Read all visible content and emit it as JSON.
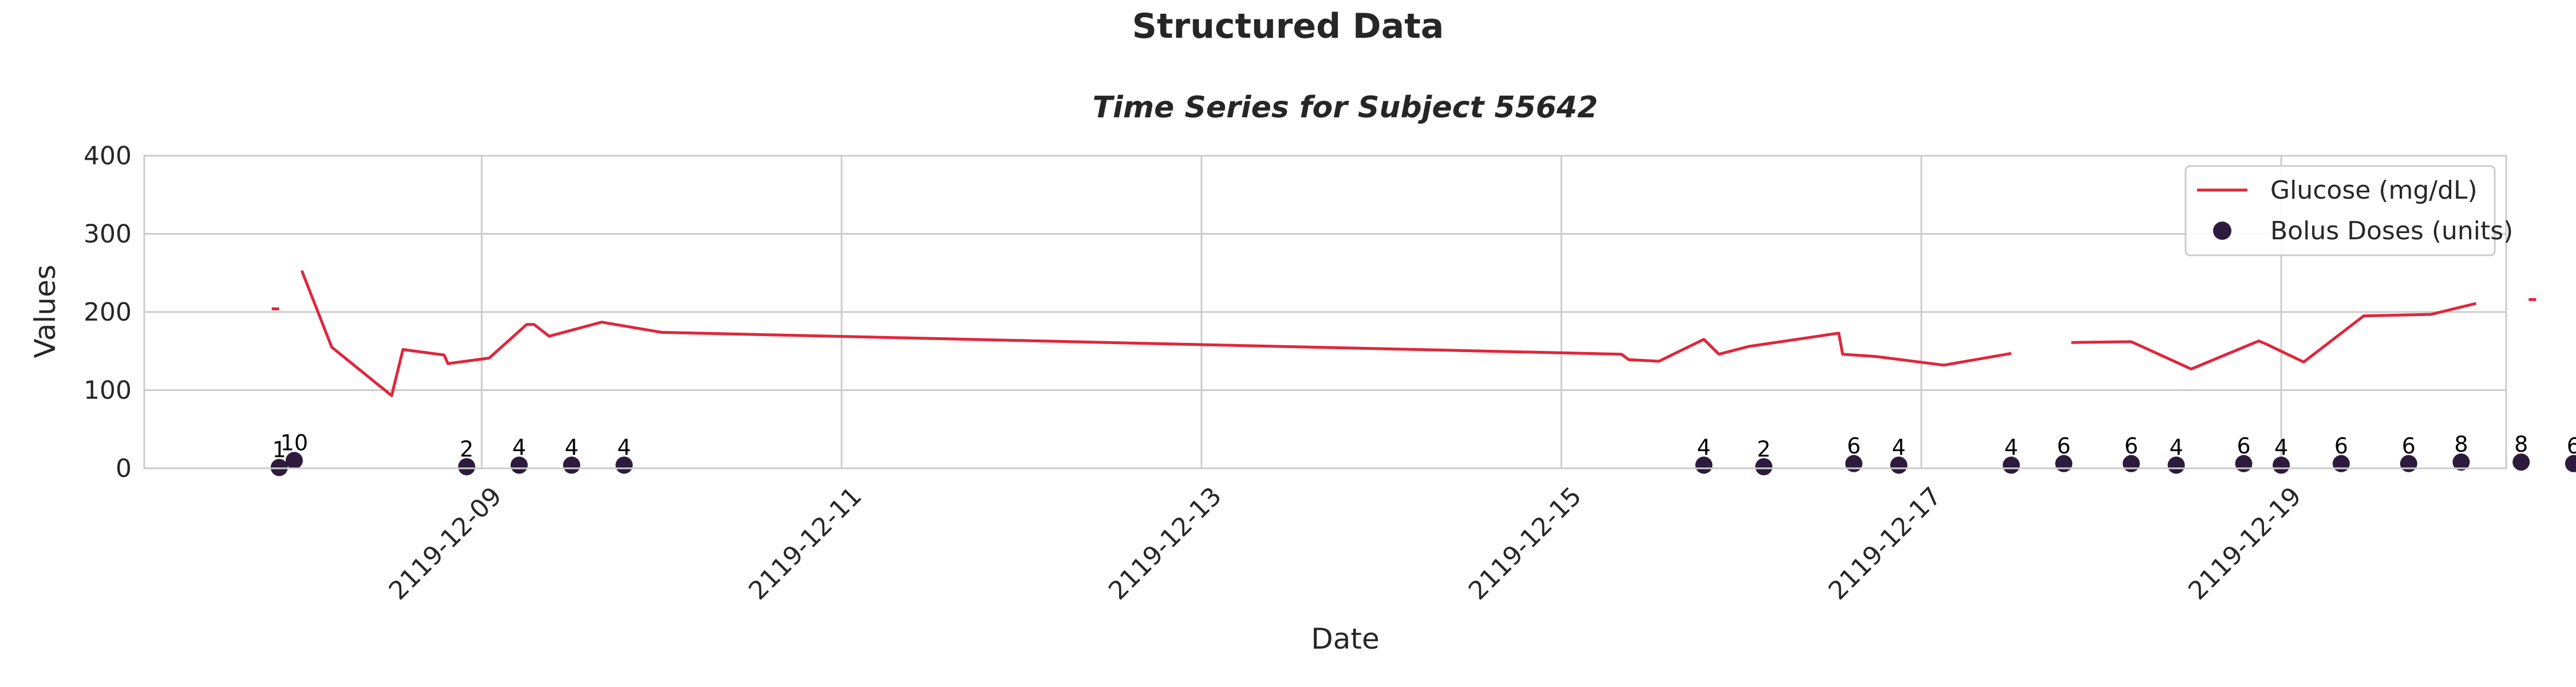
{
  "figure": {
    "suptitle": "Structured Data"
  },
  "chart_data": {
    "type": "line",
    "title": "Time Series for Subject 55642",
    "xlabel": "Date",
    "ylabel": "Values",
    "ylim": [
      0,
      400
    ],
    "xlim": [
      "2119-12-07 03:00",
      "2119-12-20 06:00"
    ],
    "y_ticks": [
      "0",
      "100",
      "200",
      "300",
      "400"
    ],
    "x_ticks": [
      "2119-12-09",
      "2119-12-11",
      "2119-12-13",
      "2119-12-15",
      "2119-12-17",
      "2119-12-19"
    ],
    "grid": true,
    "legend_position": "top-right",
    "colors": {
      "glucose": "#e0263b",
      "bolus": "#2d1b3d",
      "grid": "#cccccc",
      "spine": "#cccccc"
    },
    "series": [
      {
        "name": "Glucose (mg/dL)",
        "kind": "line",
        "segments": [
          [
            {
              "x": "2119-12-07 20:00",
              "y": 204
            },
            {
              "x": "2119-12-07 21:00",
              "y": 204
            }
          ],
          [
            {
              "x": "2119-12-08 00:00",
              "y": 253
            },
            {
              "x": "2119-12-08 04:00",
              "y": 155
            },
            {
              "x": "2119-12-08 12:00",
              "y": 93
            },
            {
              "x": "2119-12-08 13:30",
              "y": 152
            },
            {
              "x": "2119-12-08 19:00",
              "y": 145
            },
            {
              "x": "2119-12-08 19:30",
              "y": 134
            },
            {
              "x": "2119-12-09 01:00",
              "y": 141
            },
            {
              "x": "2119-12-09 06:00",
              "y": 184
            },
            {
              "x": "2119-12-09 07:00",
              "y": 184
            },
            {
              "x": "2119-12-09 09:00",
              "y": 169
            },
            {
              "x": "2119-12-09 16:00",
              "y": 187
            },
            {
              "x": "2119-12-10 00:00",
              "y": 174
            },
            {
              "x": "2119-12-15 08:00",
              "y": 146
            },
            {
              "x": "2119-12-15 09:00",
              "y": 139
            },
            {
              "x": "2119-12-15 13:00",
              "y": 137
            },
            {
              "x": "2119-12-15 19:00",
              "y": 165
            },
            {
              "x": "2119-12-15 21:00",
              "y": 146
            },
            {
              "x": "2119-12-16 01:00",
              "y": 156
            },
            {
              "x": "2119-12-16 13:00",
              "y": 173
            },
            {
              "x": "2119-12-16 13:30",
              "y": 146
            },
            {
              "x": "2119-12-16 18:00",
              "y": 143
            },
            {
              "x": "2119-12-17 03:00",
              "y": 132
            },
            {
              "x": "2119-12-17 12:00",
              "y": 147
            }
          ],
          [
            {
              "x": "2119-12-17 20:00",
              "y": 161
            },
            {
              "x": "2119-12-18 04:00",
              "y": 162
            },
            {
              "x": "2119-12-18 12:00",
              "y": 127
            },
            {
              "x": "2119-12-18 21:00",
              "y": 163
            },
            {
              "x": "2119-12-18 22:00",
              "y": 159
            },
            {
              "x": "2119-12-19 03:00",
              "y": 136
            },
            {
              "x": "2119-12-19 11:00",
              "y": 195
            },
            {
              "x": "2119-12-19 20:00",
              "y": 197
            },
            {
              "x": "2119-12-20 02:00",
              "y": 211
            }
          ],
          [
            {
              "x": "2119-12-20 09:00",
              "y": 216
            },
            {
              "x": "2119-12-20 10:00",
              "y": 216
            }
          ]
        ]
      },
      {
        "name": "Bolus Doses (units)",
        "kind": "scatter",
        "points": [
          {
            "x": "2119-12-07 21:00",
            "y": 1,
            "label": "1"
          },
          {
            "x": "2119-12-07 23:00",
            "y": 10,
            "label": "10"
          },
          {
            "x": "2119-12-08 22:00",
            "y": 2,
            "label": "2"
          },
          {
            "x": "2119-12-09 05:00",
            "y": 4,
            "label": "4"
          },
          {
            "x": "2119-12-09 12:00",
            "y": 4,
            "label": "4"
          },
          {
            "x": "2119-12-09 19:00",
            "y": 4,
            "label": "4"
          },
          {
            "x": "2119-12-15 19:00",
            "y": 4,
            "label": "4"
          },
          {
            "x": "2119-12-16 03:00",
            "y": 2,
            "label": "2"
          },
          {
            "x": "2119-12-16 15:00",
            "y": 6,
            "label": "6"
          },
          {
            "x": "2119-12-16 21:00",
            "y": 4,
            "label": "4"
          },
          {
            "x": "2119-12-17 12:00",
            "y": 4,
            "label": "4"
          },
          {
            "x": "2119-12-17 19:00",
            "y": 6,
            "label": "6"
          },
          {
            "x": "2119-12-18 04:00",
            "y": 6,
            "label": "6"
          },
          {
            "x": "2119-12-18 10:00",
            "y": 4,
            "label": "4"
          },
          {
            "x": "2119-12-18 19:00",
            "y": 6,
            "label": "6"
          },
          {
            "x": "2119-12-19 00:00",
            "y": 4,
            "label": "4"
          },
          {
            "x": "2119-12-19 08:00",
            "y": 6,
            "label": "6"
          },
          {
            "x": "2119-12-19 17:00",
            "y": 6,
            "label": "6"
          },
          {
            "x": "2119-12-20 00:00",
            "y": 8,
            "label": "8"
          },
          {
            "x": "2119-12-20 08:00",
            "y": 8,
            "label": "8"
          },
          {
            "x": "2119-12-20 15:00",
            "y": 6,
            "label": "6"
          }
        ]
      }
    ]
  }
}
